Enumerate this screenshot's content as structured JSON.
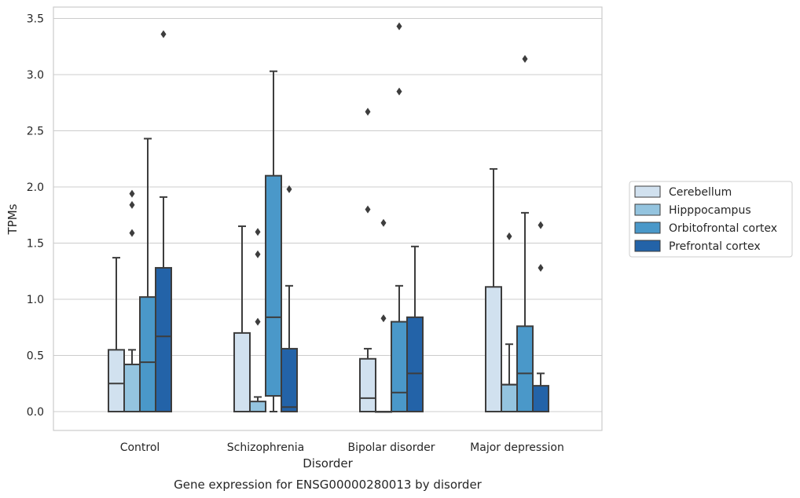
{
  "chart_data": {
    "type": "box",
    "title": "",
    "caption": "Gene expression for ENSG00000280013 by disorder",
    "xlabel": "Disorder",
    "ylabel": "TPMs",
    "ylim": [
      -0.17,
      3.61
    ],
    "yticks": [
      "0.0",
      "0.5",
      "1.0",
      "1.5",
      "2.0",
      "2.5",
      "3.0",
      "3.5"
    ],
    "grid": true,
    "legend_placement": "right",
    "categories": [
      "Control",
      "Schizophrenia",
      "Bipolar disorder",
      "Major depression"
    ],
    "series": [
      {
        "name": "Cerebellum",
        "color": "#d1e1ef",
        "boxes": [
          {
            "whislo": 0.0,
            "q1": 0.0,
            "med": 0.25,
            "q3": 0.55,
            "whishi": 1.37,
            "fliers": []
          },
          {
            "whislo": 0.0,
            "q1": 0.0,
            "med": 0.0,
            "q3": 0.7,
            "whishi": 1.65,
            "fliers": []
          },
          {
            "whislo": 0.0,
            "q1": 0.0,
            "med": 0.12,
            "q3": 0.47,
            "whishi": 0.56,
            "fliers": [
              1.8,
              2.67
            ]
          },
          {
            "whislo": 0.0,
            "q1": 0.0,
            "med": 0.0,
            "q3": 1.11,
            "whishi": 2.16,
            "fliers": []
          }
        ]
      },
      {
        "name": "Hipppocampus",
        "color": "#94c4df",
        "boxes": [
          {
            "whislo": 0.0,
            "q1": 0.0,
            "med": 0.42,
            "q3": 0.42,
            "whishi": 0.55,
            "fliers": [
              1.59,
              1.84,
              1.94
            ]
          },
          {
            "whislo": 0.0,
            "q1": 0.0,
            "med": 0.0,
            "q3": 0.09,
            "whishi": 0.13,
            "fliers": [
              0.8,
              1.4,
              1.6
            ]
          },
          {
            "whislo": 0.0,
            "q1": 0.0,
            "med": 0.0,
            "q3": 0.0,
            "whishi": 0.0,
            "fliers": [
              0.83,
              1.68
            ]
          },
          {
            "whislo": 0.0,
            "q1": 0.0,
            "med": 0.24,
            "q3": 0.24,
            "whishi": 0.6,
            "fliers": [
              1.56
            ]
          }
        ]
      },
      {
        "name": "Orbitofrontal cortex",
        "color": "#4a98c9",
        "boxes": [
          {
            "whislo": 0.0,
            "q1": 0.0,
            "med": 0.44,
            "q3": 1.02,
            "whishi": 2.43,
            "fliers": []
          },
          {
            "whislo": 0.0,
            "q1": 0.14,
            "med": 0.84,
            "q3": 2.1,
            "whishi": 3.03,
            "fliers": []
          },
          {
            "whislo": 0.0,
            "q1": 0.0,
            "med": 0.17,
            "q3": 0.8,
            "whishi": 1.12,
            "fliers": [
              2.85,
              3.43
            ]
          },
          {
            "whislo": 0.0,
            "q1": 0.0,
            "med": 0.34,
            "q3": 0.76,
            "whishi": 1.77,
            "fliers": [
              3.14
            ]
          }
        ]
      },
      {
        "name": "Prefrontal cortex",
        "color": "#2363a8",
        "boxes": [
          {
            "whislo": 0.0,
            "q1": 0.0,
            "med": 0.67,
            "q3": 1.28,
            "whishi": 1.91,
            "fliers": [
              3.36
            ]
          },
          {
            "whislo": 0.0,
            "q1": 0.0,
            "med": 0.04,
            "q3": 0.56,
            "whishi": 1.12,
            "fliers": [
              1.98
            ]
          },
          {
            "whislo": 0.0,
            "q1": 0.0,
            "med": 0.34,
            "q3": 0.84,
            "whishi": 1.47,
            "fliers": []
          },
          {
            "whislo": 0.0,
            "q1": 0.0,
            "med": 0.0,
            "q3": 0.23,
            "whishi": 0.34,
            "fliers": [
              1.28,
              1.66
            ]
          }
        ]
      }
    ]
  }
}
